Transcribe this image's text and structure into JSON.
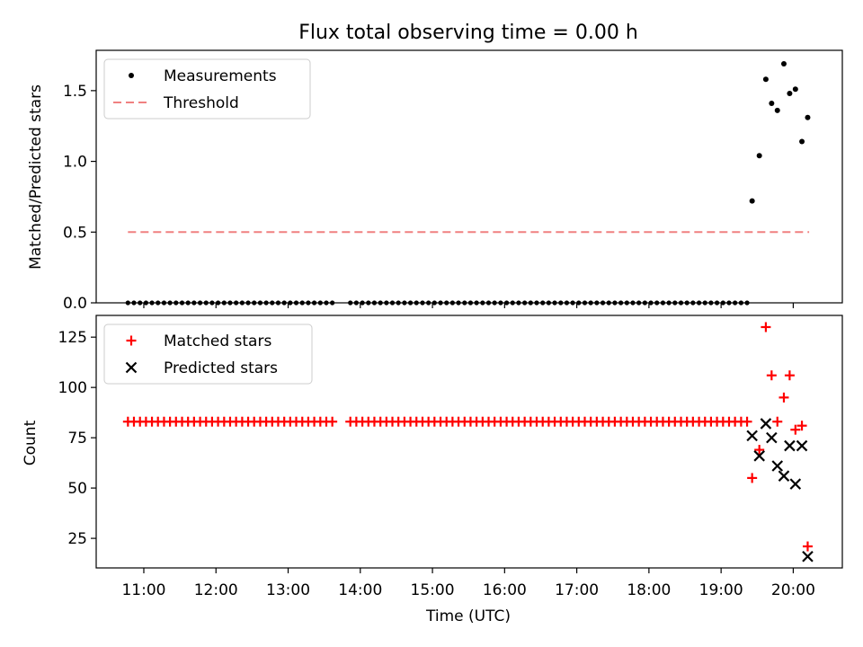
{
  "chart_data": [
    {
      "type": "scatter",
      "title": "Flux total observing time = 0.00 h",
      "xlabel": "",
      "ylabel": "Matched/Predicted stars",
      "xlim": [
        10.34,
        20.68
      ],
      "ylim": [
        0.0,
        1.785
      ],
      "yticks": [
        0.0,
        0.5,
        1.0,
        1.5
      ],
      "ytick_labels": [
        "0.0",
        "0.5",
        "1.0",
        "1.5"
      ],
      "xticks": [
        11,
        12,
        13,
        14,
        15,
        16,
        17,
        18,
        19,
        20
      ],
      "legend_position": "upper-left",
      "grid": false,
      "series": [
        {
          "name": "Measurements",
          "marker": "dot",
          "color": "#000000",
          "x": [
            19.43,
            19.53,
            19.62,
            19.7,
            19.78,
            19.87,
            19.95,
            20.03,
            20.12,
            20.2
          ],
          "y": [
            0.72,
            1.04,
            1.58,
            1.41,
            1.36,
            1.69,
            1.48,
            1.51,
            1.14,
            1.31
          ]
        },
        {
          "name": "Threshold",
          "style": "dashed",
          "color": "#f08080",
          "x": [
            10.78,
            20.22
          ],
          "y": [
            0.5,
            0.5
          ]
        }
      ]
    },
    {
      "type": "scatter",
      "title": "",
      "xlabel": "Time (UTC)",
      "ylabel": "Count",
      "xlim": [
        10.34,
        20.68
      ],
      "ylim": [
        10.3,
        135.8
      ],
      "yticks": [
        25,
        50,
        75,
        100,
        125
      ],
      "ytick_labels": [
        "25",
        "50",
        "75",
        "100",
        "125"
      ],
      "xticks": [
        11,
        12,
        13,
        14,
        15,
        16,
        17,
        18,
        19,
        20
      ],
      "xtick_labels": [
        "11:00",
        "12:00",
        "13:00",
        "14:00",
        "15:00",
        "16:00",
        "17:00",
        "18:00",
        "19:00",
        "20:00"
      ],
      "legend_position": "upper-left",
      "grid": false,
      "series": [
        {
          "name": "Matched stars",
          "marker": "plus",
          "color": "#ff0000",
          "x": [
            19.43,
            19.53,
            19.62,
            19.7,
            19.78,
            19.87,
            19.95,
            20.03,
            20.12,
            20.2
          ],
          "y": [
            55,
            69,
            130,
            106,
            83,
            95,
            106,
            79,
            81,
            21
          ]
        },
        {
          "name": "Predicted stars",
          "marker": "x",
          "color": "#000000",
          "x": [
            19.43,
            19.53,
            19.62,
            19.7,
            19.78,
            19.87,
            19.95,
            20.03,
            20.12,
            20.2
          ],
          "y": [
            76,
            66,
            82,
            75,
            61,
            56,
            71,
            52,
            71,
            16
          ]
        }
      ]
    }
  ]
}
